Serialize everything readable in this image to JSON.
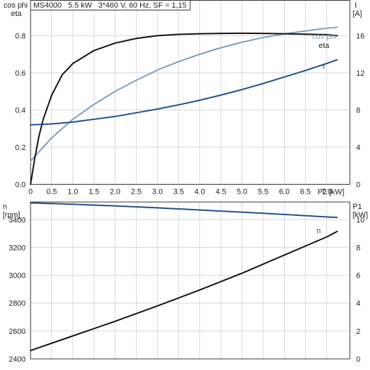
{
  "chart_data": [
    {
      "type": "line",
      "title": "MS4000   5.5 kW   3*460 V, 60 Hz, SF = 1,15",
      "xlabel": "P2",
      "xunit": "[kW]",
      "x_ticks": [
        "0",
        "0.5",
        "1.0",
        "1.5",
        "2.0",
        "2.5",
        "3.0",
        "3.5",
        "4.0",
        "4.5",
        "5.0",
        "5.5",
        "6.0",
        "6.5",
        "7.0"
      ],
      "xlim": [
        0,
        7.55
      ],
      "y_left": {
        "label_line1": "cos phi",
        "label_line2": "eta",
        "lim": [
          0,
          0.99
        ],
        "ticks": [
          "0.0",
          "0.2",
          "0.4",
          "0.6",
          "0.8"
        ]
      },
      "y_right": {
        "label_line1": "I",
        "label_line2": "[A]",
        "lim": [
          0,
          19.8
        ],
        "ticks": [
          "0",
          "4",
          "8",
          "12",
          "16"
        ]
      },
      "grid": true,
      "series": [
        {
          "name": "cos phi",
          "axis": "left",
          "color": "#7a9ec0",
          "x": [
            0,
            0.5,
            1.0,
            1.5,
            2.0,
            2.5,
            3.0,
            3.5,
            4.0,
            4.5,
            5.0,
            5.5,
            6.0,
            6.5,
            7.0,
            7.25
          ],
          "y": [
            0.125,
            0.25,
            0.35,
            0.43,
            0.5,
            0.56,
            0.615,
            0.66,
            0.7,
            0.735,
            0.765,
            0.79,
            0.81,
            0.825,
            0.84,
            0.845
          ]
        },
        {
          "name": "eta",
          "axis": "left",
          "color": "#111111",
          "x": [
            0,
            0.1,
            0.2,
            0.3,
            0.5,
            0.75,
            1.0,
            1.5,
            2.0,
            2.5,
            3.0,
            3.5,
            4.0,
            4.5,
            5.0,
            5.5,
            6.0,
            6.5,
            7.0,
            7.25
          ],
          "y": [
            0.0,
            0.14,
            0.26,
            0.35,
            0.48,
            0.59,
            0.65,
            0.72,
            0.76,
            0.785,
            0.8,
            0.807,
            0.81,
            0.812,
            0.813,
            0.812,
            0.81,
            0.808,
            0.805,
            0.8
          ]
        },
        {
          "name": "I",
          "axis": "right",
          "color": "#1f4e8c",
          "x": [
            0,
            0.5,
            1.0,
            1.5,
            2.0,
            2.5,
            3.0,
            3.5,
            4.0,
            4.5,
            5.0,
            5.5,
            6.0,
            6.5,
            7.0,
            7.25
          ],
          "y": [
            6.4,
            6.5,
            6.7,
            7.0,
            7.3,
            7.7,
            8.1,
            8.55,
            9.05,
            9.6,
            10.2,
            10.85,
            11.55,
            12.25,
            13.0,
            13.4
          ]
        }
      ]
    },
    {
      "type": "line",
      "xlim": [
        0,
        7.55
      ],
      "y_left": {
        "label_line1": "n",
        "label_line2": "[rpm]",
        "lim": [
          2400,
          3526
        ],
        "ticks": [
          "2400",
          "2600",
          "2800",
          "3000",
          "3200",
          "3400"
        ]
      },
      "y_right": {
        "label_line1": "P1",
        "label_line2": "[kW]",
        "lim": [
          0,
          11.26
        ],
        "ticks": [
          "0",
          "2",
          "4",
          "6",
          "8",
          "10"
        ]
      },
      "grid": true,
      "series": [
        {
          "name": "n",
          "axis": "left",
          "color": "#1f4e8c",
          "x": [
            0,
            1.0,
            2.0,
            3.0,
            4.0,
            5.0,
            6.0,
            7.0,
            7.25
          ],
          "y": [
            3520,
            3510,
            3498,
            3484,
            3469,
            3453,
            3437,
            3419,
            3415
          ]
        },
        {
          "name": "",
          "axis": "right",
          "color": "#111111",
          "x": [
            0,
            1.0,
            2.0,
            3.0,
            4.0,
            5.0,
            6.0,
            7.0,
            7.25
          ],
          "y": [
            0.6,
            1.65,
            2.7,
            3.8,
            4.95,
            6.15,
            7.45,
            8.75,
            9.15
          ]
        }
      ]
    }
  ]
}
